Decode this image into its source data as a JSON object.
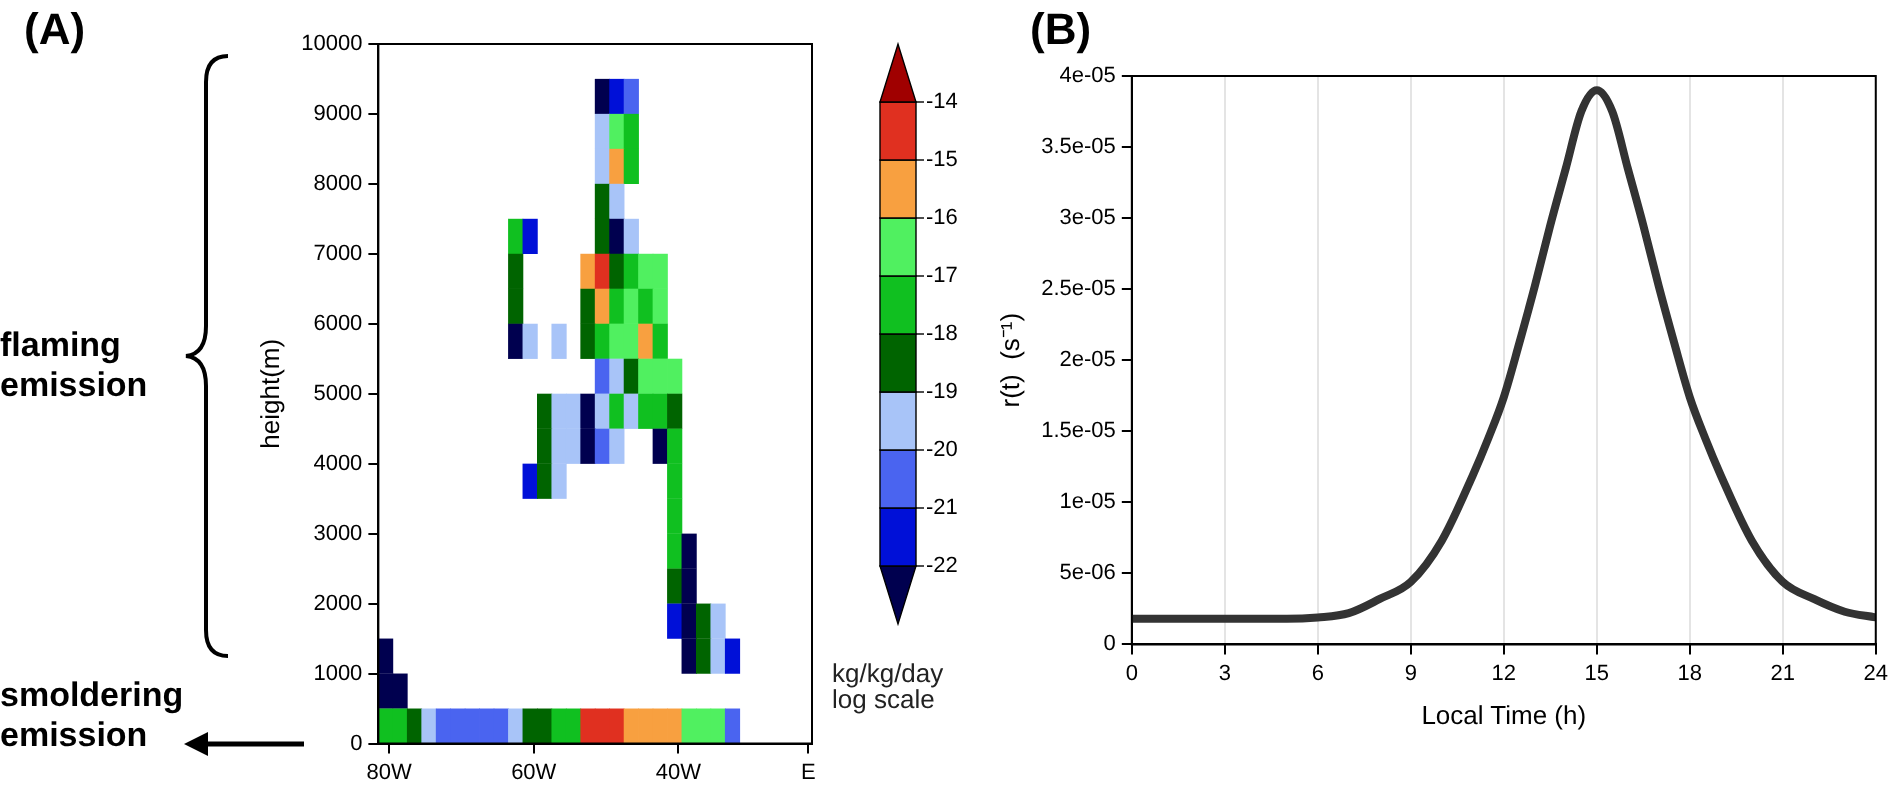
{
  "chart_data": [
    {
      "type": "scatter",
      "title": "(A)",
      "ylabel": "height(m)",
      "clabel": "kg/kg/day log scale",
      "annotations": [
        "flaming emission",
        "smoldering emission"
      ],
      "marker": "square",
      "xlim": [
        -81.5,
        -21.5
      ],
      "xticks": [
        {
          "value": -80,
          "label": "80W"
        },
        {
          "value": -60,
          "label": "60W"
        },
        {
          "value": -40,
          "label": "40W"
        },
        {
          "value": -22,
          "label": "E"
        }
      ],
      "ylim": [
        0,
        10000
      ],
      "yticks": [
        0,
        1000,
        2000,
        3000,
        4000,
        5000,
        6000,
        7000,
        8000,
        9000,
        10000
      ],
      "clim": [
        -23,
        -13
      ],
      "cticks": [
        -22,
        -21,
        -20,
        -19,
        -18,
        -17,
        -16,
        -15,
        -14
      ],
      "x": [
        -50.5,
        -48.5,
        -46.5,
        -50.5,
        -48.5,
        -46.5,
        -50.5,
        -48.5,
        -46.5,
        -50.5,
        -48.5,
        -62.5,
        -60.5,
        -50.5,
        -48.5,
        -46.5,
        -62.5,
        -52.5,
        -50.5,
        -48.5,
        -46.5,
        -44.5,
        -42.5,
        -62.5,
        -52.5,
        -50.5,
        -48.5,
        -46.5,
        -44.5,
        -42.5,
        -62.5,
        -60.5,
        -56.5,
        -52.5,
        -50.5,
        -48.5,
        -46.5,
        -44.5,
        -42.5,
        -50.5,
        -48.5,
        -46.5,
        -44.5,
        -42.5,
        -40.5,
        -58.5,
        -56.5,
        -54.5,
        -52.5,
        -50.5,
        -48.5,
        -46.5,
        -44.5,
        -42.5,
        -40.5,
        -58.5,
        -56.5,
        -54.5,
        -52.5,
        -50.5,
        -48.5,
        -42.5,
        -40.5,
        -60.5,
        -58.5,
        -56.5,
        -40.5,
        -40.5,
        -40.5,
        -38.5,
        -40.5,
        -38.5,
        -40.5,
        -38.5,
        -36.5,
        -34.5,
        -80.5,
        -38.5,
        -36.5,
        -34.5,
        -32.5,
        -80.5,
        -78.5,
        -80.5,
        -78.5,
        -76.5,
        -74.5,
        -72.5,
        -70.5,
        -68.5,
        -66.5,
        -64.5,
        -62.5,
        -60.5,
        -58.5,
        -56.5,
        -54.5,
        -52.5,
        -50.5,
        -48.5,
        -46.5,
        -44.5,
        -42.5,
        -40.5,
        -38.5,
        -36.5,
        -34.5,
        -32.5
      ],
      "values": [
        9250,
        9250,
        9250,
        8750,
        8750,
        8750,
        8250,
        8250,
        8250,
        7750,
        7750,
        7250,
        7250,
        7250,
        7250,
        7250,
        6750,
        6750,
        6750,
        6750,
        6750,
        6750,
        6750,
        6250,
        6250,
        6250,
        6250,
        6250,
        6250,
        6250,
        5750,
        5750,
        5750,
        5750,
        5750,
        5750,
        5750,
        5750,
        5750,
        5250,
        5250,
        5250,
        5250,
        5250,
        5250,
        4750,
        4750,
        4750,
        4750,
        4750,
        4750,
        4750,
        4750,
        4750,
        4750,
        4250,
        4250,
        4250,
        4250,
        4250,
        4250,
        4250,
        4250,
        3750,
        3750,
        3750,
        3750,
        3250,
        2750,
        2750,
        2250,
        2250,
        1750,
        1750,
        1750,
        1750,
        1250,
        1250,
        1250,
        1250,
        1250,
        750,
        750,
        250,
        250,
        250,
        250,
        250,
        250,
        250,
        250,
        250,
        250,
        250,
        250,
        250,
        250,
        250,
        250,
        250,
        250,
        250,
        250,
        250,
        250,
        250,
        250,
        250
      ],
      "cvalues": [
        -22.5,
        -21.5,
        -20.5,
        -19.5,
        -16.5,
        -17.5,
        -19.5,
        -15.5,
        -17.5,
        -18.5,
        -19.5,
        -17.5,
        -21.5,
        -18.5,
        -22.5,
        -19.5,
        -18.5,
        -15.5,
        -14.5,
        -18.5,
        -17.5,
        -16.5,
        -16.5,
        -18.5,
        -18.5,
        -15.5,
        -17.5,
        -16.5,
        -17.5,
        -16.5,
        -22.5,
        -19.5,
        -19.5,
        -18.5,
        -17.5,
        -16.5,
        -16.5,
        -15.5,
        -17.5,
        -20.5,
        -19.5,
        -18.5,
        -16.5,
        -16.5,
        -16.5,
        -18.5,
        -19.5,
        -19.5,
        -22.5,
        -19.5,
        -17.5,
        -19.5,
        -17.5,
        -17.5,
        -18.5,
        -18.5,
        -19.5,
        -19.5,
        -22.5,
        -20.5,
        -19.5,
        -22.5,
        -17.5,
        -21.5,
        -18.5,
        -19.5,
        -17.5,
        -17.5,
        -17.5,
        -22.5,
        -18.5,
        -22.5,
        -21.5,
        -22.5,
        -18.5,
        -19.5,
        -22.5,
        -22.5,
        -18.5,
        -19.5,
        -21.5,
        -22.5,
        -22.5,
        -17.5,
        -17.5,
        -18.5,
        -19.5,
        -20.5,
        -20.5,
        -20.5,
        -20.5,
        -20.5,
        -19.5,
        -18.5,
        -18.5,
        -17.5,
        -17.5,
        -14.5,
        -14.5,
        -14.5,
        -15.5,
        -15.5,
        -15.5,
        -15.5,
        -16.5,
        -16.5,
        -16.5,
        -20.5
      ]
    },
    {
      "type": "line",
      "title": "(B)",
      "xlabel": "Local Time (h)",
      "ylabel": "r(t)  (s⁻¹)",
      "color": "#333333",
      "marker": "none",
      "line_style": "solid",
      "grid": "x",
      "x": [
        0,
        1,
        2,
        3,
        4,
        5,
        6,
        7,
        8,
        9,
        10,
        11,
        11.5,
        12,
        12.5,
        13,
        13.5,
        14,
        14.5,
        15,
        15.5,
        16,
        16.5,
        17,
        17.5,
        18,
        18.5,
        19,
        20,
        21,
        22,
        23,
        24
      ],
      "values": [
        1.8e-06,
        1.8e-06,
        1.8e-06,
        1.8e-06,
        1.8e-06,
        1.8e-06,
        1.9e-06,
        2.2e-06,
        3.2e-06,
        4.4e-06,
        7.3e-06,
        1.19e-05,
        1.45e-05,
        1.74e-05,
        2.12e-05,
        2.52e-05,
        2.95e-05,
        3.35e-05,
        3.75e-05,
        3.9e-05,
        3.75e-05,
        3.35e-05,
        2.95e-05,
        2.52e-05,
        2.12e-05,
        1.74e-05,
        1.45e-05,
        1.19e-05,
        7.3e-06,
        4.4e-06,
        3.2e-06,
        2.3e-06,
        1.9e-06
      ],
      "xlim": [
        0,
        24
      ],
      "xticks": [
        0,
        3,
        6,
        9,
        12,
        15,
        18,
        21,
        24
      ],
      "ylim": [
        0,
        4e-05
      ],
      "yticks": [
        0,
        {
          "value": 5e-06,
          "label": "5e-06"
        },
        {
          "value": 1e-05,
          "label": "1e-05"
        },
        {
          "value": 1.5e-05,
          "label": "1.5e-05"
        },
        {
          "value": 2e-05,
          "label": "2e-05"
        },
        {
          "value": 2.5e-05,
          "label": "2.5e-05"
        },
        {
          "value": 3e-05,
          "label": "3e-05"
        },
        {
          "value": 3.5e-05,
          "label": "3.5e-05"
        },
        {
          "value": 4e-05,
          "label": "4e-05"
        }
      ]
    }
  ]
}
